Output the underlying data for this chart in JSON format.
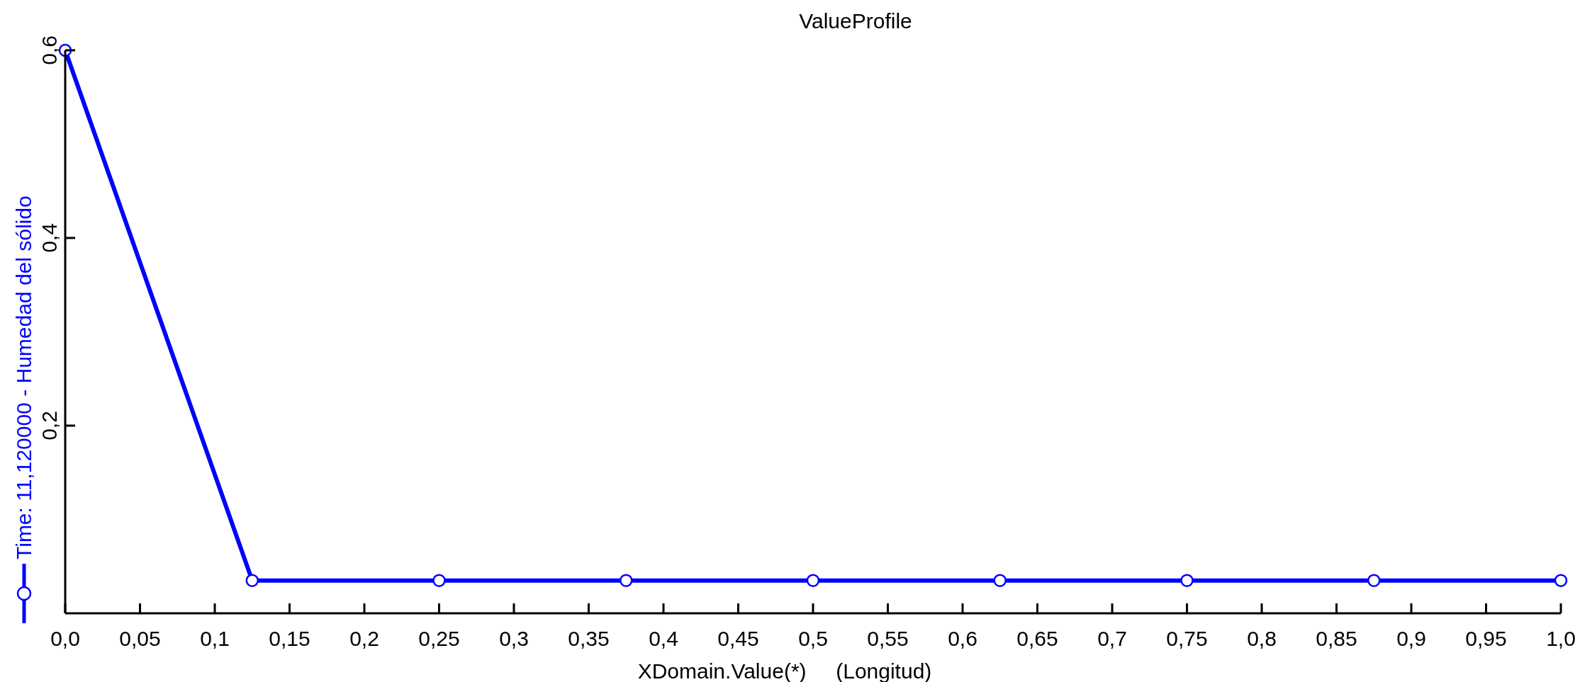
{
  "chart_data": {
    "type": "line",
    "title": "ValueProfile",
    "xlabel": "XDomain.Value(*)     (Longitud)",
    "x": [
      0,
      0.125,
      0.25,
      0.375,
      0.5,
      0.625,
      0.75,
      0.875,
      1
    ],
    "series": [
      {
        "name": "Time: 11,120000 - Humedad del sólido",
        "color": "#0000ff",
        "values": [
          0.6,
          0.035,
          0.035,
          0.035,
          0.035,
          0.035,
          0.035,
          0.035,
          0.035
        ]
      }
    ],
    "xlim": [
      0,
      1
    ],
    "xticks": [
      {
        "value": 0,
        "label": "0,0"
      },
      {
        "value": 0.05,
        "label": "0,05"
      },
      {
        "value": 0.1,
        "label": "0,1"
      },
      {
        "value": 0.15,
        "label": "0,15"
      },
      {
        "value": 0.2,
        "label": "0,2"
      },
      {
        "value": 0.25,
        "label": "0,25"
      },
      {
        "value": 0.3,
        "label": "0,3"
      },
      {
        "value": 0.35,
        "label": "0,35"
      },
      {
        "value": 0.4,
        "label": "0,4"
      },
      {
        "value": 0.45,
        "label": "0,45"
      },
      {
        "value": 0.5,
        "label": "0,5"
      },
      {
        "value": 0.55,
        "label": "0,55"
      },
      {
        "value": 0.6,
        "label": "0,6"
      },
      {
        "value": 0.65,
        "label": "0,65"
      },
      {
        "value": 0.7,
        "label": "0,7"
      },
      {
        "value": 0.75,
        "label": "0,75"
      },
      {
        "value": 0.8,
        "label": "0,8"
      },
      {
        "value": 0.85,
        "label": "0,85"
      },
      {
        "value": 0.9,
        "label": "0,9"
      },
      {
        "value": 0.95,
        "label": "0,95"
      },
      {
        "value": 1,
        "label": "1,0"
      }
    ],
    "ylim": [
      0,
      0.6
    ],
    "yticks": [
      {
        "value": 0.2,
        "label": "0,2"
      },
      {
        "value": 0.4,
        "label": "0,4"
      },
      {
        "value": 0.6,
        "label": "0,6"
      }
    ],
    "grid": false,
    "legend": "left",
    "marker": "circle",
    "line_style": "solid"
  }
}
